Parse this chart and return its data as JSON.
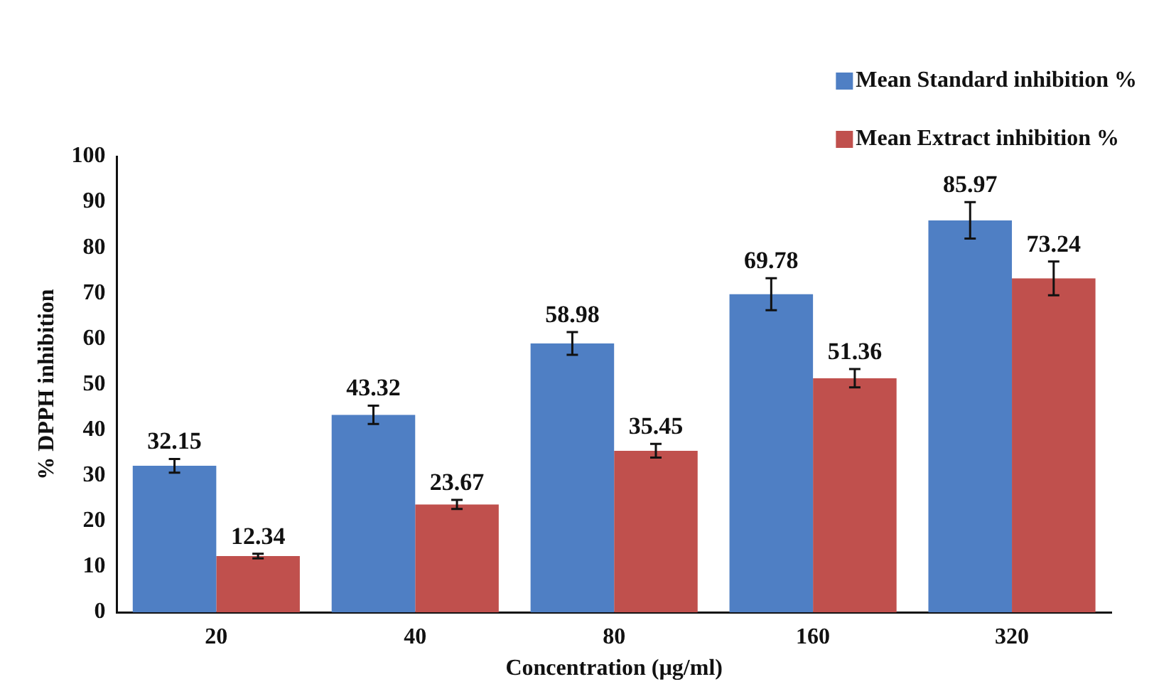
{
  "chart_data": {
    "type": "bar",
    "xlabel": "Concentration (µg/ml)",
    "ylabel": "% DPPH inhibition",
    "categories": [
      "20",
      "40",
      "80",
      "160",
      "320"
    ],
    "series": [
      {
        "name": "Mean Standard inhibition %",
        "color": "#4f7fc4",
        "values": [
          32.15,
          43.32,
          58.98,
          69.78,
          85.97
        ],
        "errors": [
          1.5,
          2,
          2.5,
          3.5,
          4
        ]
      },
      {
        "name": "Mean Extract inhibition %",
        "color": "#c0504d",
        "values": [
          12.34,
          23.67,
          35.45,
          51.36,
          73.24
        ],
        "errors": [
          0.5,
          1,
          1.5,
          2,
          3.7
        ]
      }
    ],
    "ylim": [
      0,
      100
    ],
    "yticks": [
      0,
      10,
      20,
      30,
      40,
      50,
      60,
      70,
      80,
      90,
      100
    ],
    "grid": false,
    "legend": "top right",
    "data_labels": true
  }
}
